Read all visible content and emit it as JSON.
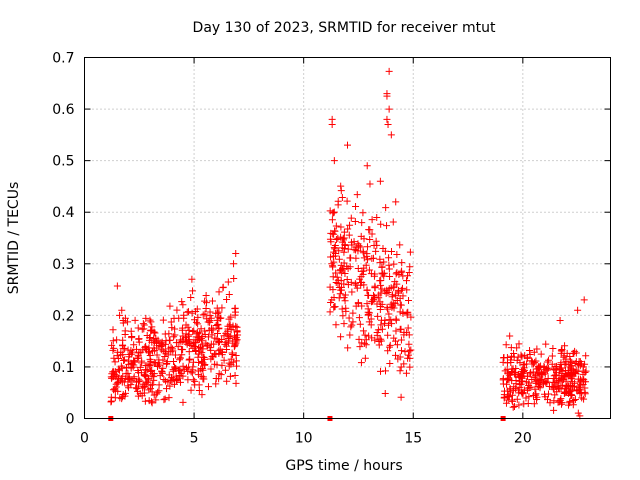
{
  "chart_data": {
    "type": "scatter",
    "title": "Day 130 of 2023, SRMTID for receiver mtut",
    "xlabel": "GPS time / hours",
    "ylabel": "SRMTID / TECUs",
    "xlim": [
      0,
      24
    ],
    "ylim": [
      0,
      0.7
    ],
    "xticks": [
      0,
      5,
      10,
      15,
      20
    ],
    "xtick_labels": [
      "0",
      "5",
      "10",
      "15",
      "20"
    ],
    "yticks": [
      0,
      0.1,
      0.2,
      0.3,
      0.4,
      0.5,
      0.6,
      0.7
    ],
    "ytick_labels": [
      "0",
      "0.1",
      "0.2",
      "0.3",
      "0.4",
      "0.5",
      "0.6",
      "0.7"
    ],
    "grid": true,
    "marker": "+",
    "series_color": "#ff0000",
    "series": [
      {
        "name": "SRMTID",
        "clusters": [
          {
            "x_start": 1.2,
            "x_end": 7.0,
            "y_min": 0.03,
            "y_max": 0.32,
            "y_trend_start": 0.09,
            "y_trend_end": 0.16,
            "spread": 0.06
          },
          {
            "x_start": 11.2,
            "x_end": 14.9,
            "y_min": 0.02,
            "y_max": 0.67,
            "y_trend_start": 0.33,
            "y_trend_end": 0.19,
            "spread": 0.1
          },
          {
            "x_start": 19.1,
            "x_end": 22.9,
            "y_min": 0.0,
            "y_max": 0.23,
            "y_trend_start": 0.08,
            "y_trend_end": 0.08,
            "spread": 0.04
          }
        ],
        "points": [
          [
            1.5,
            0.257
          ],
          [
            1.6,
            0.2
          ],
          [
            1.7,
            0.21
          ],
          [
            6.9,
            0.32
          ],
          [
            6.8,
            0.3
          ],
          [
            4.9,
            0.27
          ],
          [
            11.3,
            0.58
          ],
          [
            11.3,
            0.57
          ],
          [
            11.4,
            0.5
          ],
          [
            12.0,
            0.53
          ],
          [
            12.9,
            0.49
          ],
          [
            13.5,
            0.46
          ],
          [
            13.9,
            0.673
          ],
          [
            13.8,
            0.63
          ],
          [
            13.8,
            0.625
          ],
          [
            13.9,
            0.6
          ],
          [
            13.8,
            0.58
          ],
          [
            13.85,
            0.57
          ],
          [
            14.0,
            0.55
          ],
          [
            14.2,
            0.42
          ],
          [
            22.8,
            0.23
          ],
          [
            22.5,
            0.21
          ],
          [
            21.7,
            0.19
          ],
          [
            19.4,
            0.16
          ],
          [
            22.6,
            0.005
          ]
        ]
      }
    ],
    "baseline_markers": [
      1.2,
      11.2,
      19.1
    ]
  }
}
